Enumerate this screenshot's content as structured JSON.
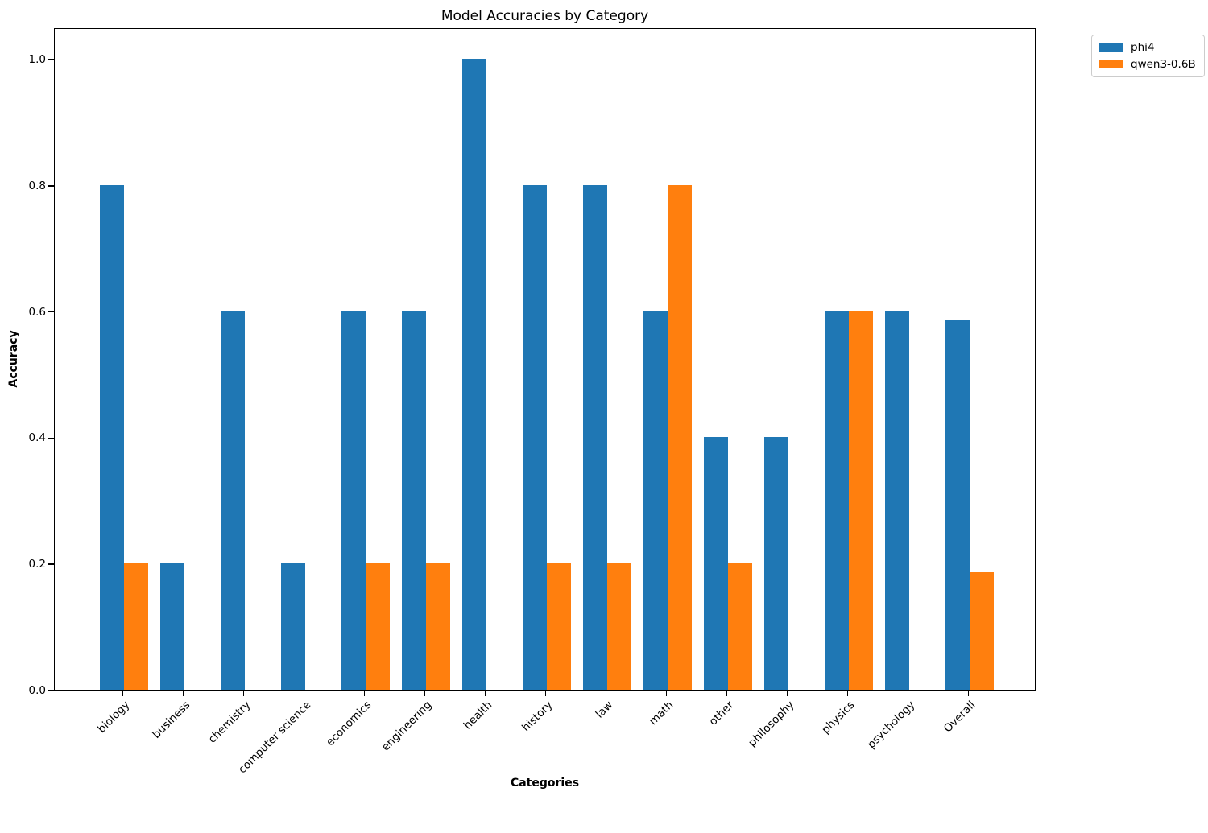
{
  "chart_data": {
    "type": "bar",
    "title": "Model Accuracies by Category",
    "xlabel": "Categories",
    "ylabel": "Accuracy",
    "categories": [
      "biology",
      "business",
      "chemistry",
      "computer science",
      "economics",
      "engineering",
      "health",
      "history",
      "law",
      "math",
      "other",
      "philosophy",
      "physics",
      "psychology",
      "Overall"
    ],
    "series": [
      {
        "name": "phi4",
        "color": "#1f77b4",
        "values": [
          0.8,
          0.2,
          0.6,
          0.2,
          0.6,
          0.6,
          1.0,
          0.8,
          0.8,
          0.6,
          0.4,
          0.4,
          0.6,
          0.6,
          0.5867
        ]
      },
      {
        "name": "qwen3-0.6B",
        "color": "#ff7f0e",
        "values": [
          0.2,
          0.0,
          0.0,
          0.0,
          0.2,
          0.2,
          0.0,
          0.2,
          0.2,
          0.8,
          0.2,
          0.0,
          0.6,
          0.0,
          0.1867
        ]
      }
    ],
    "ylim": [
      0,
      1.05
    ],
    "yticks": [
      0.0,
      0.2,
      0.4,
      0.6,
      0.8,
      1.0
    ],
    "grid": false,
    "legend_position": "upper right outside plot"
  }
}
